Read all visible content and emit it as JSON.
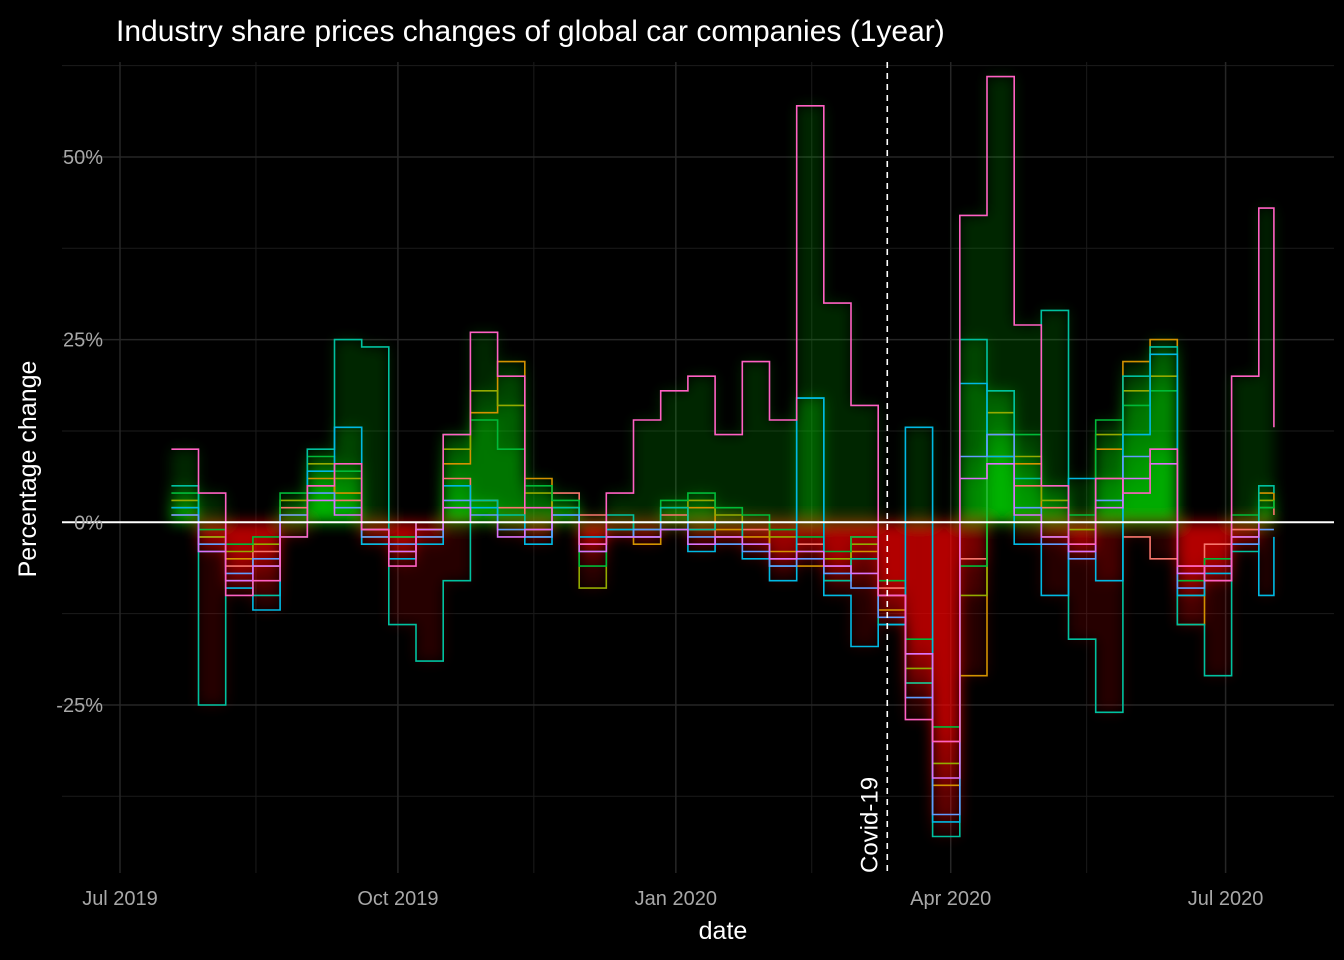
{
  "chart_data": {
    "type": "line",
    "title": "Industry share prices changes of global car companies (1year)",
    "xlabel": "date",
    "ylabel": "Percentage change",
    "xlim": [
      "2019-07-01",
      "2020-07-20"
    ],
    "ylim": [
      -48,
      63
    ],
    "x_ticks": [
      {
        "date": "2019-07-01",
        "label": "Jul 2019"
      },
      {
        "date": "2019-10-01",
        "label": "Oct 2019"
      },
      {
        "date": "2020-01-01",
        "label": "Jan 2020"
      },
      {
        "date": "2020-04-01",
        "label": "Apr 2020"
      },
      {
        "date": "2020-07-01",
        "label": "Jul 2020"
      }
    ],
    "x_minor_ticks": [
      "2019-08-15",
      "2019-11-15",
      "2020-02-15",
      "2020-05-16"
    ],
    "y_ticks": [
      {
        "value": -25,
        "label": "-25%"
      },
      {
        "value": 0,
        "label": "0%"
      },
      {
        "value": 25,
        "label": "25%"
      },
      {
        "value": 50,
        "label": "50%"
      }
    ],
    "y_minor_ticks": [
      -37.5,
      -12.5,
      12.5,
      37.5,
      62.5
    ],
    "grid": true,
    "background": "#000000",
    "gridline_color": "#262626",
    "zero_line_color": "#ffffff",
    "gain_fill_color": "#00ff00",
    "loss_fill_color": "#ff0000",
    "annotation": {
      "date": "2020-03-11",
      "text": "Covid-19"
    },
    "series": [
      {
        "color": "#F8766D",
        "x": [
          "2019-07-18",
          "2019-07-27",
          "2019-08-05",
          "2019-08-14",
          "2019-08-23",
          "2019-09-01",
          "2019-09-10",
          "2019-09-19",
          "2019-09-28",
          "2019-10-07",
          "2019-10-16",
          "2019-10-25",
          "2019-11-03",
          "2019-11-12",
          "2019-11-21",
          "2019-11-30",
          "2019-12-09",
          "2019-12-18",
          "2019-12-27",
          "2020-01-05",
          "2020-01-14",
          "2020-01-23",
          "2020-02-01",
          "2020-02-10",
          "2020-02-19",
          "2020-02-28",
          "2020-03-08",
          "2020-03-17",
          "2020-03-26",
          "2020-04-04",
          "2020-04-13",
          "2020-04-22",
          "2020-05-01",
          "2020-05-10",
          "2020-05-19",
          "2020-05-28",
          "2020-06-06",
          "2020-06-15",
          "2020-06-24",
          "2020-07-03",
          "2020-07-12",
          "2020-07-17"
        ],
        "y": [
          1,
          -2,
          -6,
          -4,
          2,
          5,
          3,
          -3,
          -2,
          -1,
          6,
          3,
          2,
          -1,
          4,
          1,
          0,
          -2,
          1,
          -1,
          -2,
          -1,
          -5,
          -3,
          -6,
          -2,
          -9,
          -18,
          -30,
          -5,
          9,
          5,
          2,
          -4,
          6,
          -2,
          -5,
          -6,
          -3,
          -1,
          2,
          1
        ]
      },
      {
        "color": "#D39200",
        "x": [
          "2019-07-18",
          "2019-07-27",
          "2019-08-05",
          "2019-08-14",
          "2019-08-23",
          "2019-09-01",
          "2019-09-10",
          "2019-09-19",
          "2019-09-28",
          "2019-10-07",
          "2019-10-16",
          "2019-10-25",
          "2019-11-03",
          "2019-11-12",
          "2019-11-21",
          "2019-11-30",
          "2019-12-09",
          "2019-12-18",
          "2019-12-27",
          "2020-01-05",
          "2020-01-14",
          "2020-01-23",
          "2020-02-01",
          "2020-02-10",
          "2020-02-19",
          "2020-02-28",
          "2020-03-08",
          "2020-03-17",
          "2020-03-26",
          "2020-04-04",
          "2020-04-13",
          "2020-04-22",
          "2020-05-01",
          "2020-05-10",
          "2020-05-19",
          "2020-05-28",
          "2020-06-06",
          "2020-06-15",
          "2020-06-24",
          "2020-07-03",
          "2020-07-12",
          "2020-07-17"
        ],
        "y": [
          2,
          -3,
          -5,
          -6,
          1,
          6,
          4,
          -1,
          -4,
          -2,
          8,
          15,
          22,
          6,
          2,
          -3,
          0,
          -3,
          0,
          2,
          -1,
          -2,
          -4,
          -6,
          -8,
          -4,
          -12,
          -22,
          -36,
          -21,
          12,
          8,
          -2,
          -3,
          10,
          22,
          25,
          -14,
          -8,
          -2,
          4,
          3
        ]
      },
      {
        "color": "#93AA00",
        "x": [
          "2019-07-18",
          "2019-07-27",
          "2019-08-05",
          "2019-08-14",
          "2019-08-23",
          "2019-09-01",
          "2019-09-10",
          "2019-09-19",
          "2019-09-28",
          "2019-10-07",
          "2019-10-16",
          "2019-10-25",
          "2019-11-03",
          "2019-11-12",
          "2019-11-21",
          "2019-11-30",
          "2019-12-09",
          "2019-12-18",
          "2019-12-27",
          "2020-01-05",
          "2020-01-14",
          "2020-01-23",
          "2020-02-01",
          "2020-02-10",
          "2020-02-19",
          "2020-02-28",
          "2020-03-08",
          "2020-03-17",
          "2020-03-26",
          "2020-04-04",
          "2020-04-13",
          "2020-04-22",
          "2020-05-01",
          "2020-05-10",
          "2020-05-19",
          "2020-05-28",
          "2020-06-06",
          "2020-06-15",
          "2020-06-24",
          "2020-07-03",
          "2020-07-12",
          "2020-07-17"
        ],
        "y": [
          3,
          -2,
          -4,
          -3,
          3,
          8,
          6,
          -2,
          -3,
          -1,
          10,
          18,
          16,
          4,
          2,
          -9,
          -2,
          -1,
          2,
          3,
          1,
          0,
          -2,
          -4,
          -5,
          -3,
          -10,
          -20,
          -33,
          -10,
          15,
          9,
          3,
          -1,
          12,
          18,
          20,
          -10,
          -6,
          0,
          3,
          2
        ]
      },
      {
        "color": "#00BA38",
        "x": [
          "2019-07-18",
          "2019-07-27",
          "2019-08-05",
          "2019-08-14",
          "2019-08-23",
          "2019-09-01",
          "2019-09-10",
          "2019-09-19",
          "2019-09-28",
          "2019-10-07",
          "2019-10-16",
          "2019-10-25",
          "2019-11-03",
          "2019-11-12",
          "2019-11-21",
          "2019-11-30",
          "2019-12-09",
          "2019-12-18",
          "2019-12-27",
          "2020-01-05",
          "2020-01-14",
          "2020-01-23",
          "2020-02-01",
          "2020-02-10",
          "2020-02-19",
          "2020-02-28",
          "2020-03-08",
          "2020-03-17",
          "2020-03-26",
          "2020-04-04",
          "2020-04-13",
          "2020-04-22",
          "2020-05-01",
          "2020-05-10",
          "2020-05-19",
          "2020-05-28",
          "2020-06-06",
          "2020-06-15",
          "2020-06-24",
          "2020-07-03",
          "2020-07-12",
          "2020-07-17"
        ],
        "y": [
          4,
          -1,
          -3,
          -2,
          4,
          9,
          7,
          -1,
          -2,
          0,
          12,
          14,
          10,
          5,
          3,
          -6,
          -1,
          0,
          3,
          4,
          2,
          1,
          -1,
          -2,
          -4,
          -2,
          -8,
          -16,
          -28,
          -6,
          18,
          12,
          5,
          1,
          14,
          16,
          18,
          -8,
          -5,
          1,
          2,
          3
        ]
      },
      {
        "color": "#00C19F",
        "x": [
          "2019-07-18",
          "2019-07-27",
          "2019-08-05",
          "2019-08-14",
          "2019-08-23",
          "2019-09-01",
          "2019-09-10",
          "2019-09-19",
          "2019-09-28",
          "2019-10-07",
          "2019-10-16",
          "2019-10-25",
          "2019-11-03",
          "2019-11-12",
          "2019-11-21",
          "2019-11-30",
          "2019-12-09",
          "2019-12-18",
          "2019-12-27",
          "2020-01-05",
          "2020-01-14",
          "2020-01-23",
          "2020-02-01",
          "2020-02-10",
          "2020-02-19",
          "2020-02-28",
          "2020-03-08",
          "2020-03-17",
          "2020-03-26",
          "2020-04-04",
          "2020-04-13",
          "2020-04-22",
          "2020-05-01",
          "2020-05-10",
          "2020-05-19",
          "2020-05-28",
          "2020-06-06",
          "2020-06-15",
          "2020-06-24",
          "2020-07-03",
          "2020-07-12",
          "2020-07-17"
        ],
        "y": [
          5,
          -25,
          -8,
          -10,
          -2,
          10,
          25,
          24,
          -14,
          -19,
          -8,
          3,
          1,
          -2,
          2,
          -4,
          1,
          -1,
          2,
          -1,
          0,
          -3,
          -6,
          17,
          -8,
          -5,
          -14,
          -22,
          -43,
          25,
          18,
          6,
          29,
          -16,
          -26,
          20,
          24,
          -14,
          -21,
          -4,
          5,
          4
        ]
      },
      {
        "color": "#00B9E3",
        "x": [
          "2019-07-18",
          "2019-07-27",
          "2019-08-05",
          "2019-08-14",
          "2019-08-23",
          "2019-09-01",
          "2019-09-10",
          "2019-09-19",
          "2019-09-28",
          "2019-10-07",
          "2019-10-16",
          "2019-10-25",
          "2019-11-03",
          "2019-11-12",
          "2019-11-21",
          "2019-11-30",
          "2019-12-09",
          "2019-12-18",
          "2019-12-27",
          "2020-01-05",
          "2020-01-14",
          "2020-01-23",
          "2020-02-01",
          "2020-02-10",
          "2020-02-19",
          "2020-02-28",
          "2020-03-08",
          "2020-03-17",
          "2020-03-26",
          "2020-04-04",
          "2020-04-13",
          "2020-04-22",
          "2020-05-01",
          "2020-05-10",
          "2020-05-19",
          "2020-05-28",
          "2020-06-06",
          "2020-06-15",
          "2020-06-24",
          "2020-07-03",
          "2020-07-12",
          "2020-07-17"
        ],
        "y": [
          2,
          -4,
          -9,
          -12,
          0,
          7,
          13,
          -3,
          -5,
          -3,
          5,
          2,
          0,
          -3,
          1,
          -2,
          -1,
          -2,
          -1,
          -4,
          -3,
          -5,
          -8,
          17,
          -10,
          -17,
          -14,
          13,
          -41,
          19,
          9,
          -3,
          -10,
          6,
          -8,
          12,
          23,
          -10,
          -7,
          -3,
          -10,
          -2
        ]
      },
      {
        "color": "#619CFF",
        "x": [
          "2019-07-18",
          "2019-07-27",
          "2019-08-05",
          "2019-08-14",
          "2019-08-23",
          "2019-09-01",
          "2019-09-10",
          "2019-09-19",
          "2019-09-28",
          "2019-10-07",
          "2019-10-16",
          "2019-10-25",
          "2019-11-03",
          "2019-11-12",
          "2019-11-21",
          "2019-11-30",
          "2019-12-09",
          "2019-12-18",
          "2019-12-27",
          "2020-01-05",
          "2020-01-14",
          "2020-01-23",
          "2020-02-01",
          "2020-02-10",
          "2020-02-19",
          "2020-02-28",
          "2020-03-08",
          "2020-03-17",
          "2020-03-26",
          "2020-04-04",
          "2020-04-13",
          "2020-04-22",
          "2020-05-01",
          "2020-05-10",
          "2020-05-19",
          "2020-05-28",
          "2020-06-06",
          "2020-06-15",
          "2020-06-24",
          "2020-07-03",
          "2020-07-12",
          "2020-07-17"
        ],
        "y": [
          1,
          -3,
          -7,
          -5,
          1,
          4,
          2,
          -2,
          -3,
          -2,
          3,
          1,
          -1,
          -2,
          1,
          -3,
          -2,
          -1,
          0,
          -2,
          -3,
          -4,
          -6,
          -5,
          -7,
          -9,
          -13,
          -24,
          -40,
          9,
          12,
          2,
          -3,
          -5,
          3,
          9,
          10,
          -9,
          -8,
          -3,
          -1,
          -1
        ]
      },
      {
        "color": "#DB72FB",
        "x": [
          "2019-07-18",
          "2019-07-27",
          "2019-08-05",
          "2019-08-14",
          "2019-08-23",
          "2019-09-01",
          "2019-09-10",
          "2019-09-19",
          "2019-09-28",
          "2019-10-07",
          "2019-10-16",
          "2019-10-25",
          "2019-11-03",
          "2019-11-12",
          "2019-11-21",
          "2019-11-30",
          "2019-12-09",
          "2019-12-18",
          "2019-12-27",
          "2020-01-05",
          "2020-01-14",
          "2020-01-23",
          "2020-02-01",
          "2020-02-10",
          "2020-02-19",
          "2020-02-28",
          "2020-03-08",
          "2020-03-17",
          "2020-03-26",
          "2020-04-04",
          "2020-04-13",
          "2020-04-22",
          "2020-05-01",
          "2020-05-10",
          "2020-05-19",
          "2020-05-28",
          "2020-06-06",
          "2020-06-15",
          "2020-06-24",
          "2020-07-03",
          "2020-07-12",
          "2020-07-17"
        ],
        "y": [
          0,
          -4,
          -8,
          -6,
          0,
          3,
          1,
          -1,
          -4,
          -1,
          2,
          0,
          -2,
          -1,
          0,
          -4,
          -2,
          -2,
          -1,
          -3,
          -2,
          -3,
          -5,
          -4,
          -6,
          -7,
          -10,
          -18,
          -35,
          6,
          8,
          1,
          -2,
          -4,
          2,
          6,
          8,
          -7,
          -6,
          -2,
          0,
          0
        ]
      },
      {
        "color": "#FF61C3",
        "x": [
          "2019-07-18",
          "2019-07-27",
          "2019-08-05",
          "2019-08-14",
          "2019-08-23",
          "2019-09-01",
          "2019-09-10",
          "2019-09-19",
          "2019-09-28",
          "2019-10-07",
          "2019-10-16",
          "2019-10-25",
          "2019-11-03",
          "2019-11-12",
          "2019-11-21",
          "2019-11-30",
          "2019-12-09",
          "2019-12-18",
          "2019-12-27",
          "2020-01-05",
          "2020-01-14",
          "2020-01-23",
          "2020-02-01",
          "2020-02-10",
          "2020-02-19",
          "2020-02-28",
          "2020-03-08",
          "2020-03-17",
          "2020-03-26",
          "2020-04-04",
          "2020-04-13",
          "2020-04-22",
          "2020-05-01",
          "2020-05-10",
          "2020-05-19",
          "2020-05-28",
          "2020-06-06",
          "2020-06-15",
          "2020-06-24",
          "2020-07-03",
          "2020-07-12",
          "2020-07-17"
        ],
        "y": [
          10,
          4,
          -10,
          -8,
          -2,
          5,
          8,
          -1,
          -6,
          0,
          12,
          26,
          20,
          2,
          0,
          -3,
          4,
          14,
          18,
          20,
          12,
          22,
          14,
          57,
          30,
          16,
          -10,
          -27,
          -30,
          42,
          61,
          27,
          5,
          -3,
          6,
          4,
          10,
          -6,
          -8,
          20,
          43,
          13
        ]
      }
    ]
  }
}
